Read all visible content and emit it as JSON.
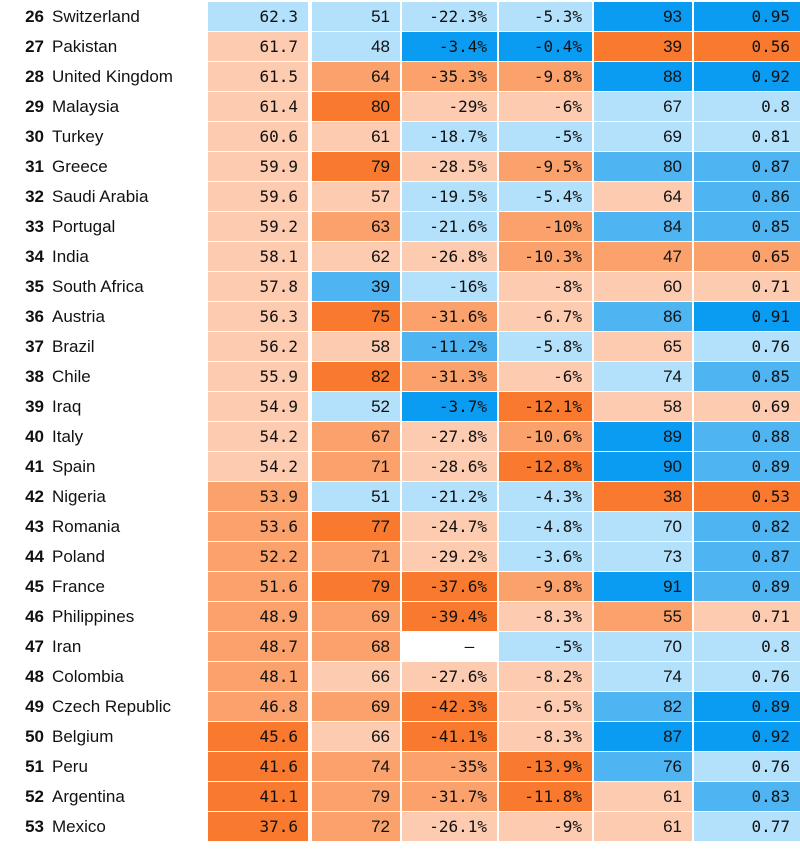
{
  "colors": {
    "dark_orange": "#f97a2e",
    "mid_orange": "#fba26c",
    "light_orange": "#fdcbb0",
    "light_blue": "#b3e1fc",
    "mid_blue": "#4fb4f2",
    "dark_blue": "#0a9cf2",
    "blank": "#ffffff"
  },
  "chart_data": {
    "type": "table",
    "columns": [
      "rank",
      "country",
      "col1",
      "col2",
      "col3",
      "col4",
      "col5",
      "col6"
    ],
    "rows": [
      {
        "rank": "26",
        "country": "Switzerland",
        "values": [
          "62.3",
          "51",
          "-22.3%",
          "-5.3%",
          "93",
          "0.95"
        ],
        "colors": [
          "light_blue",
          "light_blue",
          "light_blue",
          "light_blue",
          "dark_blue",
          "dark_blue"
        ]
      },
      {
        "rank": "27",
        "country": "Pakistan",
        "values": [
          "61.7",
          "48",
          "-3.4%",
          "-0.4%",
          "39",
          "0.56"
        ],
        "colors": [
          "light_orange",
          "light_blue",
          "dark_blue",
          "dark_blue",
          "dark_orange",
          "dark_orange"
        ]
      },
      {
        "rank": "28",
        "country": "United Kingdom",
        "values": [
          "61.5",
          "64",
          "-35.3%",
          "-9.8%",
          "88",
          "0.92"
        ],
        "colors": [
          "light_orange",
          "mid_orange",
          "mid_orange",
          "mid_orange",
          "dark_blue",
          "dark_blue"
        ]
      },
      {
        "rank": "29",
        "country": "Malaysia",
        "values": [
          "61.4",
          "80",
          "-29%",
          "-6%",
          "67",
          "0.8"
        ],
        "colors": [
          "light_orange",
          "dark_orange",
          "light_orange",
          "light_orange",
          "light_blue",
          "light_blue"
        ]
      },
      {
        "rank": "30",
        "country": "Turkey",
        "values": [
          "60.6",
          "61",
          "-18.7%",
          "-5%",
          "69",
          "0.81"
        ],
        "colors": [
          "light_orange",
          "light_orange",
          "light_blue",
          "light_blue",
          "light_blue",
          "light_blue"
        ]
      },
      {
        "rank": "31",
        "country": "Greece",
        "values": [
          "59.9",
          "79",
          "-28.5%",
          "-9.5%",
          "80",
          "0.87"
        ],
        "colors": [
          "light_orange",
          "dark_orange",
          "light_orange",
          "mid_orange",
          "mid_blue",
          "mid_blue"
        ]
      },
      {
        "rank": "32",
        "country": "Saudi Arabia",
        "values": [
          "59.6",
          "57",
          "-19.5%",
          "-5.4%",
          "64",
          "0.86"
        ],
        "colors": [
          "light_orange",
          "light_orange",
          "light_blue",
          "light_blue",
          "light_orange",
          "mid_blue"
        ]
      },
      {
        "rank": "33",
        "country": "Portugal",
        "values": [
          "59.2",
          "63",
          "-21.6%",
          "-10%",
          "84",
          "0.85"
        ],
        "colors": [
          "light_orange",
          "mid_orange",
          "light_blue",
          "mid_orange",
          "mid_blue",
          "mid_blue"
        ]
      },
      {
        "rank": "34",
        "country": "India",
        "values": [
          "58.1",
          "62",
          "-26.8%",
          "-10.3%",
          "47",
          "0.65"
        ],
        "colors": [
          "light_orange",
          "light_orange",
          "light_orange",
          "mid_orange",
          "mid_orange",
          "mid_orange"
        ]
      },
      {
        "rank": "35",
        "country": "South Africa",
        "values": [
          "57.8",
          "39",
          "-16%",
          "-8%",
          "60",
          "0.71"
        ],
        "colors": [
          "light_orange",
          "mid_blue",
          "light_blue",
          "light_orange",
          "light_orange",
          "light_orange"
        ]
      },
      {
        "rank": "36",
        "country": "Austria",
        "values": [
          "56.3",
          "75",
          "-31.6%",
          "-6.7%",
          "86",
          "0.91"
        ],
        "colors": [
          "light_orange",
          "dark_orange",
          "mid_orange",
          "light_orange",
          "mid_blue",
          "dark_blue"
        ]
      },
      {
        "rank": "37",
        "country": "Brazil",
        "values": [
          "56.2",
          "58",
          "-11.2%",
          "-5.8%",
          "65",
          "0.76"
        ],
        "colors": [
          "light_orange",
          "light_orange",
          "mid_blue",
          "light_blue",
          "light_orange",
          "light_blue"
        ]
      },
      {
        "rank": "38",
        "country": "Chile",
        "values": [
          "55.9",
          "82",
          "-31.3%",
          "-6%",
          "74",
          "0.85"
        ],
        "colors": [
          "light_orange",
          "dark_orange",
          "mid_orange",
          "light_orange",
          "light_blue",
          "mid_blue"
        ]
      },
      {
        "rank": "39",
        "country": "Iraq",
        "values": [
          "54.9",
          "52",
          "-3.7%",
          "-12.1%",
          "58",
          "0.69"
        ],
        "colors": [
          "light_orange",
          "light_blue",
          "dark_blue",
          "dark_orange",
          "light_orange",
          "light_orange"
        ]
      },
      {
        "rank": "40",
        "country": "Italy",
        "values": [
          "54.2",
          "67",
          "-27.8%",
          "-10.6%",
          "89",
          "0.88"
        ],
        "colors": [
          "light_orange",
          "mid_orange",
          "light_orange",
          "mid_orange",
          "dark_blue",
          "mid_blue"
        ]
      },
      {
        "rank": "41",
        "country": "Spain",
        "values": [
          "54.2",
          "71",
          "-28.6%",
          "-12.8%",
          "90",
          "0.89"
        ],
        "colors": [
          "light_orange",
          "mid_orange",
          "light_orange",
          "dark_orange",
          "dark_blue",
          "mid_blue"
        ]
      },
      {
        "rank": "42",
        "country": "Nigeria",
        "values": [
          "53.9",
          "51",
          "-21.2%",
          "-4.3%",
          "38",
          "0.53"
        ],
        "colors": [
          "mid_orange",
          "light_blue",
          "light_blue",
          "light_blue",
          "dark_orange",
          "dark_orange"
        ]
      },
      {
        "rank": "43",
        "country": "Romania",
        "values": [
          "53.6",
          "77",
          "-24.7%",
          "-4.8%",
          "70",
          "0.82"
        ],
        "colors": [
          "mid_orange",
          "dark_orange",
          "light_orange",
          "light_blue",
          "light_blue",
          "mid_blue"
        ]
      },
      {
        "rank": "44",
        "country": "Poland",
        "values": [
          "52.2",
          "71",
          "-29.2%",
          "-3.6%",
          "73",
          "0.87"
        ],
        "colors": [
          "mid_orange",
          "mid_orange",
          "light_orange",
          "light_blue",
          "light_blue",
          "mid_blue"
        ]
      },
      {
        "rank": "45",
        "country": "France",
        "values": [
          "51.6",
          "79",
          "-37.6%",
          "-9.8%",
          "91",
          "0.89"
        ],
        "colors": [
          "mid_orange",
          "dark_orange",
          "dark_orange",
          "mid_orange",
          "dark_blue",
          "mid_blue"
        ]
      },
      {
        "rank": "46",
        "country": "Philippines",
        "values": [
          "48.9",
          "69",
          "-39.4%",
          "-8.3%",
          "55",
          "0.71"
        ],
        "colors": [
          "mid_orange",
          "mid_orange",
          "dark_orange",
          "light_orange",
          "mid_orange",
          "light_orange"
        ]
      },
      {
        "rank": "47",
        "country": "Iran",
        "values": [
          "48.7",
          "68",
          "–",
          "-5%",
          "70",
          "0.8"
        ],
        "colors": [
          "mid_orange",
          "mid_orange",
          "blank",
          "light_blue",
          "light_blue",
          "light_blue"
        ]
      },
      {
        "rank": "48",
        "country": "Colombia",
        "values": [
          "48.1",
          "66",
          "-27.6%",
          "-8.2%",
          "74",
          "0.76"
        ],
        "colors": [
          "mid_orange",
          "light_orange",
          "light_orange",
          "light_orange",
          "light_blue",
          "light_blue"
        ]
      },
      {
        "rank": "49",
        "country": "Czech Republic",
        "values": [
          "46.8",
          "69",
          "-42.3%",
          "-6.5%",
          "82",
          "0.89"
        ],
        "colors": [
          "mid_orange",
          "mid_orange",
          "dark_orange",
          "light_orange",
          "mid_blue",
          "dark_blue"
        ]
      },
      {
        "rank": "50",
        "country": "Belgium",
        "values": [
          "45.6",
          "66",
          "-41.1%",
          "-8.3%",
          "87",
          "0.92"
        ],
        "colors": [
          "dark_orange",
          "light_orange",
          "dark_orange",
          "light_orange",
          "dark_blue",
          "dark_blue"
        ]
      },
      {
        "rank": "51",
        "country": "Peru",
        "values": [
          "41.6",
          "74",
          "-35%",
          "-13.9%",
          "76",
          "0.76"
        ],
        "colors": [
          "dark_orange",
          "mid_orange",
          "mid_orange",
          "dark_orange",
          "mid_blue",
          "light_blue"
        ]
      },
      {
        "rank": "52",
        "country": "Argentina",
        "values": [
          "41.1",
          "79",
          "-31.7%",
          "-11.8%",
          "61",
          "0.83"
        ],
        "colors": [
          "dark_orange",
          "mid_orange",
          "mid_orange",
          "dark_orange",
          "light_orange",
          "mid_blue"
        ]
      },
      {
        "rank": "53",
        "country": "Mexico",
        "values": [
          "37.6",
          "72",
          "-26.1%",
          "-9%",
          "61",
          "0.77"
        ],
        "colors": [
          "dark_orange",
          "mid_orange",
          "light_orange",
          "light_orange",
          "light_orange",
          "light_blue"
        ]
      }
    ]
  }
}
